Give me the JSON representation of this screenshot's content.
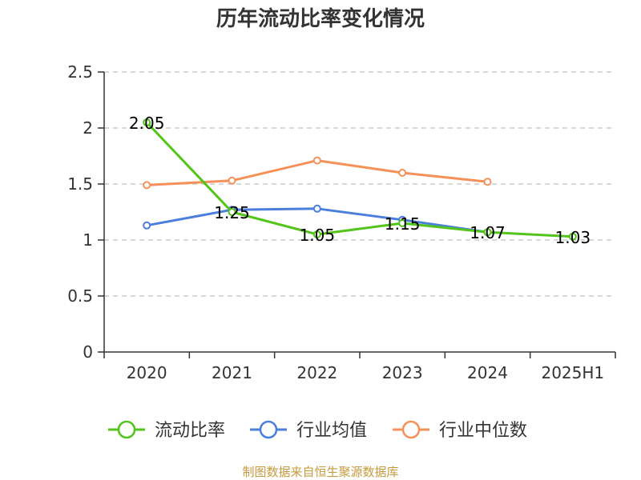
{
  "source": "制图数据来自恒生聚源数据库",
  "chart_data": {
    "type": "line",
    "title": "历年流动比率变化情况",
    "categories": [
      "2020",
      "2021",
      "2022",
      "2023",
      "2024",
      "2025H1"
    ],
    "ylim": [
      0,
      2.5
    ],
    "yticks": [
      "0",
      "0.5",
      "1",
      "1.5",
      "2",
      "2.5"
    ],
    "grid": true,
    "legend_position": "bottom",
    "series": [
      {
        "name": "流动比率",
        "color": "#52c41a",
        "values": [
          2.05,
          1.25,
          1.05,
          1.15,
          1.07,
          1.03
        ],
        "labels": [
          "2.05",
          "1.25",
          "1.05",
          "1.15",
          "1.07",
          "1.03"
        ]
      },
      {
        "name": "行业均值",
        "color": "#4a7fdb",
        "values": [
          1.13,
          1.27,
          1.28,
          1.18,
          1.07,
          null
        ]
      },
      {
        "name": "行业中位数",
        "color": "#f59158",
        "values": [
          1.49,
          1.53,
          1.71,
          1.6,
          1.52,
          null
        ]
      }
    ]
  }
}
